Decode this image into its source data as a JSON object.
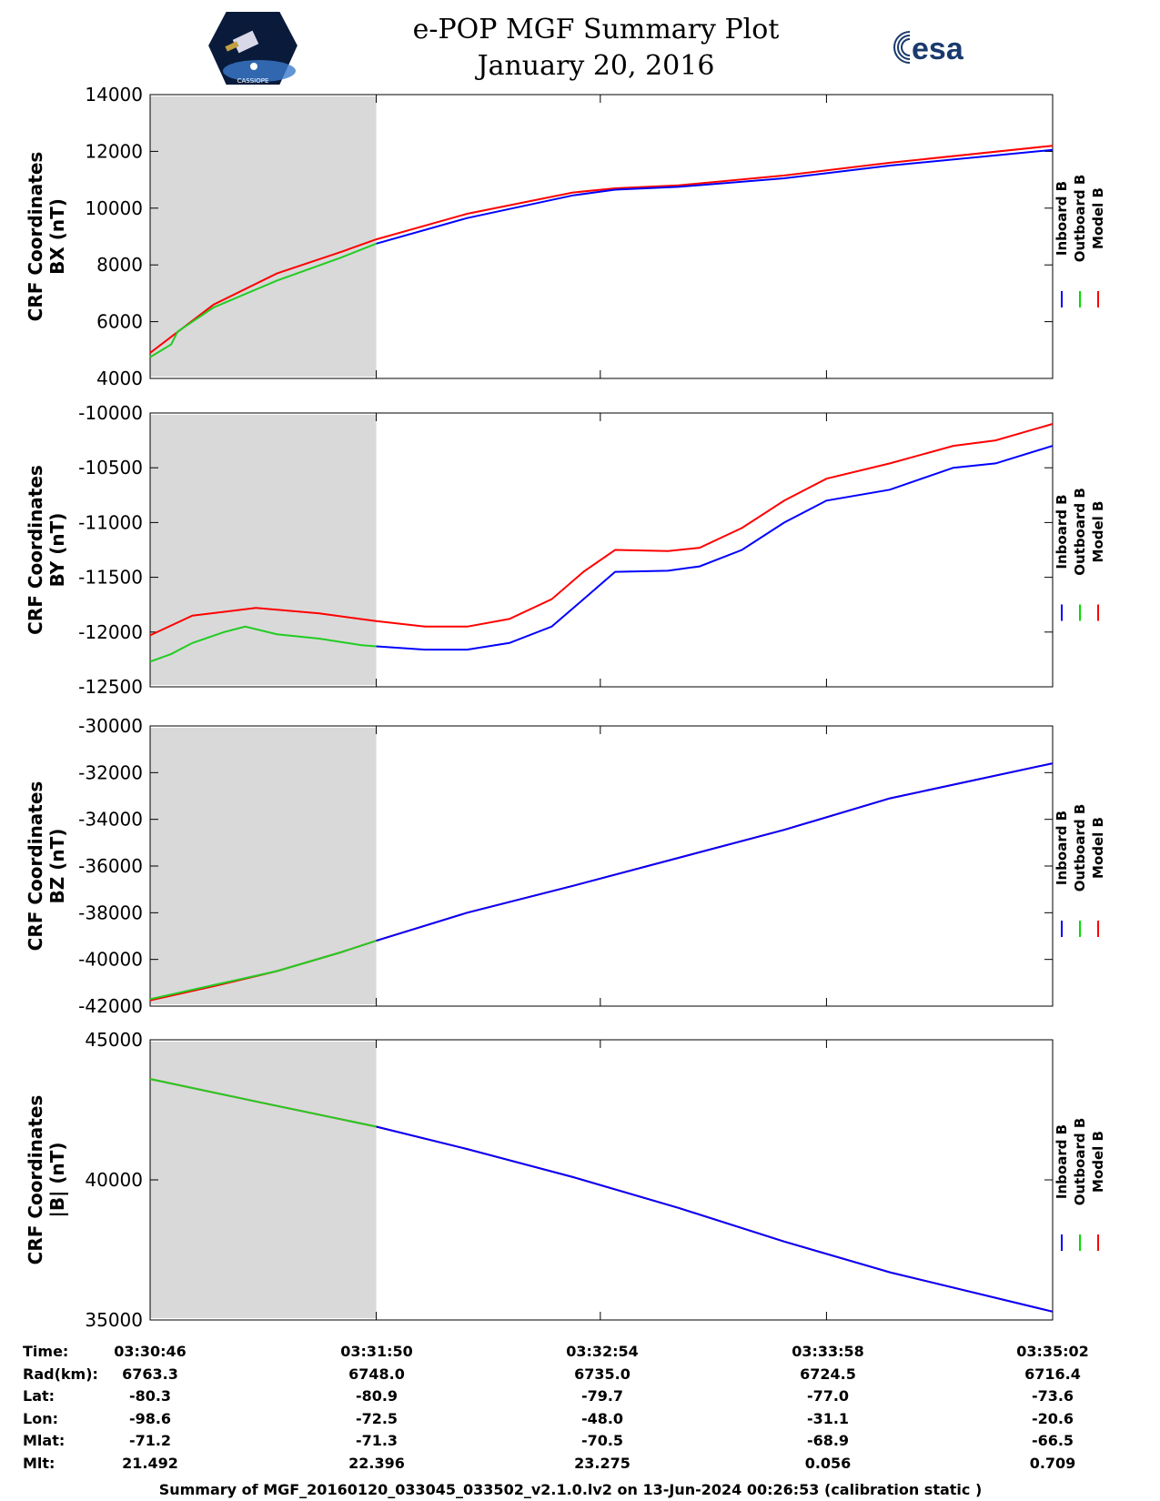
{
  "header": {
    "title": "e-POP MGF Summary Plot",
    "date": "January 20, 2016",
    "esa_logo_text": "esa",
    "cassiope_logo_text": "CASSIOPE"
  },
  "legend": {
    "items": [
      {
        "label": "Inboard B",
        "color": "#0000ff"
      },
      {
        "label": "Outboard B",
        "color": "#00dd00"
      },
      {
        "label": "Model B",
        "color": "#ff0000"
      }
    ]
  },
  "colors": {
    "inboard": "#0000ff",
    "outboard": "#22cc22",
    "model": "#ff0000",
    "shade": "#d9d9d9"
  },
  "chart_data": [
    {
      "type": "line",
      "ylabel_line1": "CRF Coordinates",
      "ylabel_line2": "BX (nT)",
      "ylim": [
        4000,
        14000
      ],
      "yticks": [
        4000,
        6000,
        8000,
        10000,
        12000,
        14000
      ],
      "x_minutes_range": [
        0,
        4.27
      ],
      "shaded_x_range": [
        0,
        1.07
      ],
      "series": [
        {
          "name": "Inboard B",
          "x": [
            1.07,
            1.5,
            2.0,
            2.2,
            2.5,
            3.0,
            3.5,
            4.27
          ],
          "values": [
            8750,
            9650,
            10450,
            10650,
            10750,
            11050,
            11500,
            12050
          ]
        },
        {
          "name": "Outboard B",
          "x": [
            0,
            0.1,
            0.13,
            0.3,
            0.6,
            0.9,
            1.07
          ],
          "values": [
            4750,
            5200,
            5650,
            6500,
            7450,
            8250,
            8750
          ]
        },
        {
          "name": "Model B",
          "x": [
            0,
            0.3,
            0.6,
            0.9,
            1.07,
            1.5,
            2.0,
            2.2,
            2.5,
            3.0,
            3.5,
            4.27
          ],
          "values": [
            4900,
            6600,
            7700,
            8450,
            8900,
            9800,
            10550,
            10700,
            10800,
            11150,
            11600,
            12200
          ]
        }
      ]
    },
    {
      "type": "line",
      "ylabel_line1": "CRF Coordinates",
      "ylabel_line2": "BY (nT)",
      "ylim": [
        -12500,
        -10000
      ],
      "yticks": [
        -12500,
        -12000,
        -11500,
        -11000,
        -10500,
        -10000
      ],
      "x_minutes_range": [
        0,
        4.27
      ],
      "shaded_x_range": [
        0,
        1.07
      ],
      "series": [
        {
          "name": "Inboard B",
          "x": [
            1.07,
            1.3,
            1.5,
            1.7,
            1.9,
            2.05,
            2.2,
            2.45,
            2.6,
            2.8,
            3.0,
            3.2,
            3.5,
            3.8,
            4.0,
            4.27
          ],
          "values": [
            -12130,
            -12160,
            -12160,
            -12100,
            -11950,
            -11700,
            -11450,
            -11440,
            -11400,
            -11250,
            -11000,
            -10800,
            -10700,
            -10500,
            -10460,
            -10300
          ]
        },
        {
          "name": "Outboard B",
          "x": [
            0,
            0.1,
            0.2,
            0.35,
            0.45,
            0.6,
            0.8,
            1.0,
            1.07
          ],
          "values": [
            -12270,
            -12200,
            -12100,
            -12000,
            -11950,
            -12020,
            -12060,
            -12120,
            -12130
          ]
        },
        {
          "name": "Model B",
          "x": [
            0,
            0.2,
            0.5,
            0.8,
            1.07,
            1.3,
            1.5,
            1.7,
            1.9,
            2.05,
            2.2,
            2.45,
            2.6,
            2.8,
            3.0,
            3.2,
            3.5,
            3.8,
            4.0,
            4.27
          ],
          "values": [
            -12030,
            -11850,
            -11780,
            -11830,
            -11900,
            -11950,
            -11950,
            -11880,
            -11700,
            -11450,
            -11250,
            -11260,
            -11230,
            -11050,
            -10800,
            -10600,
            -10460,
            -10300,
            -10250,
            -10100
          ]
        }
      ]
    },
    {
      "type": "line",
      "ylabel_line1": "CRF Coordinates",
      "ylabel_line2": "BZ (nT)",
      "ylim": [
        -42000,
        -30000
      ],
      "yticks": [
        -42000,
        -40000,
        -38000,
        -36000,
        -34000,
        -32000,
        -30000
      ],
      "x_minutes_range": [
        0,
        4.27
      ],
      "shaded_x_range": [
        0,
        1.07
      ],
      "series": [
        {
          "name": "Inboard B",
          "x": [
            1.07,
            1.5,
            2.0,
            2.5,
            3.0,
            3.5,
            4.27
          ],
          "values": [
            -39200,
            -38000,
            -36850,
            -35650,
            -34450,
            -33100,
            -31600
          ]
        },
        {
          "name": "Outboard B",
          "x": [
            0,
            0.3,
            0.6,
            0.9,
            1.07
          ],
          "values": [
            -41700,
            -41100,
            -40500,
            -39700,
            -39200
          ]
        },
        {
          "name": "Model B",
          "x": [
            0,
            0.3,
            0.6,
            0.9,
            1.07,
            1.5,
            2.0,
            2.5,
            3.0,
            3.5,
            4.27
          ],
          "values": [
            -41750,
            -41150,
            -40500,
            -39700,
            -39200,
            -38000,
            -36850,
            -35650,
            -34450,
            -33100,
            -31600
          ]
        }
      ]
    },
    {
      "type": "line",
      "ylabel_line1": "CRF Coordinates",
      "ylabel_line2": "|B| (nT)",
      "ylim": [
        35000,
        45000
      ],
      "yticks": [
        35000,
        40000,
        45000
      ],
      "x_minutes_range": [
        0,
        4.27
      ],
      "shaded_x_range": [
        0,
        1.07
      ],
      "series": [
        {
          "name": "Inboard B",
          "x": [
            1.07,
            1.5,
            2.0,
            2.5,
            3.0,
            3.5,
            4.27
          ],
          "values": [
            41900,
            41100,
            40100,
            39000,
            37800,
            36700,
            35300
          ]
        },
        {
          "name": "Outboard B",
          "x": [
            0,
            0.5,
            1.07
          ],
          "values": [
            43600,
            42800,
            41900
          ]
        },
        {
          "name": "Model B",
          "x": [
            0,
            0.5,
            1.07,
            1.5,
            2.0,
            2.5,
            3.0,
            3.5,
            4.27
          ],
          "values": [
            43600,
            42800,
            41900,
            41100,
            40100,
            39000,
            37800,
            36700,
            35300
          ]
        }
      ]
    }
  ],
  "table": {
    "row_labels": [
      "Time:",
      "Rad(km):",
      "Lat:",
      "Lon:",
      "Mlat:",
      "Mlt:"
    ],
    "columns": [
      [
        "03:30:46",
        "6763.3",
        "-80.3",
        "-98.6",
        "-71.2",
        "21.492"
      ],
      [
        "03:31:50",
        "6748.0",
        "-80.9",
        "-72.5",
        "-71.3",
        "22.396"
      ],
      [
        "03:32:54",
        "6735.0",
        "-79.7",
        "-48.0",
        "-70.5",
        "23.275"
      ],
      [
        "03:33:58",
        "6724.5",
        "-77.0",
        "-31.1",
        "-68.9",
        "0.056"
      ],
      [
        "03:35:02",
        "6716.4",
        "-73.6",
        "-20.6",
        "-66.5",
        "0.709"
      ]
    ]
  },
  "footer": "Summary of MGF_20160120_033045_033502_v2.1.0.lv2 on 13-Jun-2024 00:26:53 (calibration static )"
}
